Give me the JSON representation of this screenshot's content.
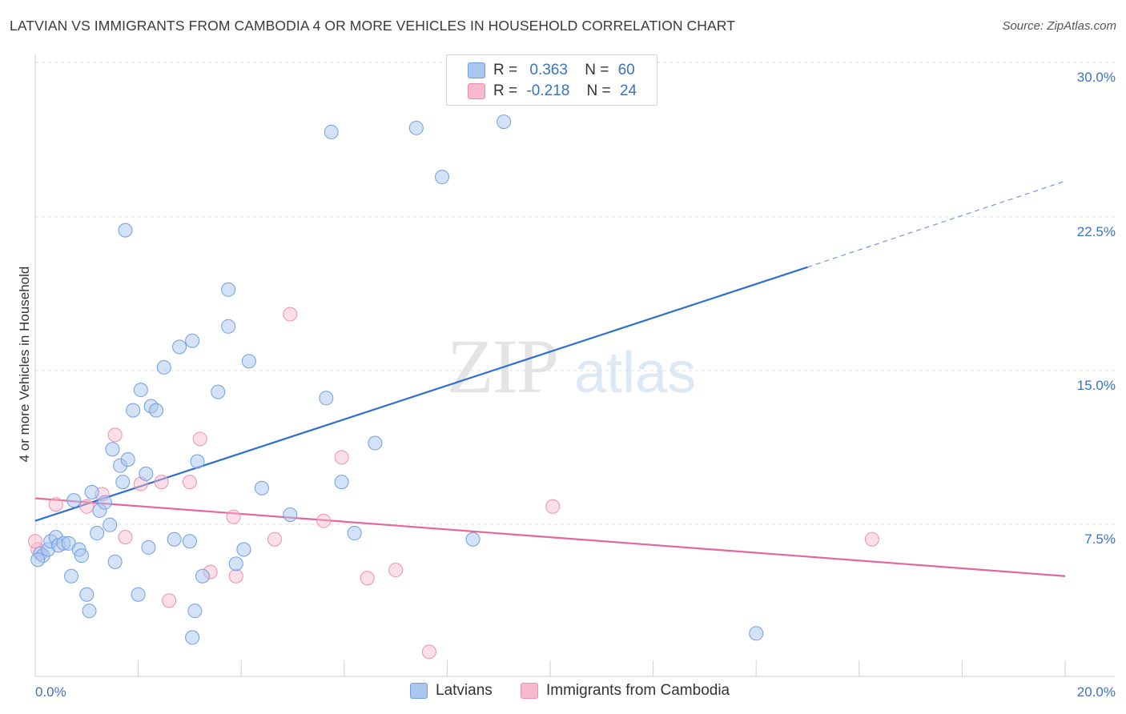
{
  "title": "LATVIAN VS IMMIGRANTS FROM CAMBODIA 4 OR MORE VEHICLES IN HOUSEHOLD CORRELATION CHART",
  "source": "Source: ZipAtlas.com",
  "legend": {
    "rows": [
      {
        "r_label": "R =",
        "r_value": "0.363",
        "n_label": "N =",
        "n_value": "60"
      },
      {
        "r_label": "R =",
        "r_value": "-0.218",
        "n_label": "N =",
        "n_value": "24"
      }
    ]
  },
  "bottom_legend": {
    "series1": "Latvians",
    "series2": "Immigrants from Cambodia"
  },
  "colors": {
    "series1_fill": "#a9c6ef",
    "series1_stroke": "#6f9fe0",
    "series1_line": "#2f6fd0",
    "series2_fill": "#f6b9cd",
    "series2_stroke": "#ee8fb0",
    "series2_line": "#e2679a",
    "tick_text": "#3a72c6"
  },
  "chart_data": {
    "type": "scatter",
    "xlabel": "",
    "ylabel": "4 or more Vehicles in Household",
    "xlim": [
      0,
      20
    ],
    "ylim": [
      0,
      30
    ],
    "x_tick_labels": [
      "0.0%",
      "20.0%"
    ],
    "y_ticks": [
      7.5,
      15.0,
      22.5,
      30.0
    ],
    "y_tick_labels": [
      "7.5%",
      "15.0%",
      "22.5%",
      "30.0%"
    ],
    "grid": "horizontal dashed",
    "legend_position": "top-center",
    "watermark": {
      "part1": "ZIP",
      "part2": "atlas"
    },
    "series": [
      {
        "name": "Latvians",
        "points": [
          [
            0.1,
            6.0
          ],
          [
            0.15,
            5.9
          ],
          [
            0.25,
            6.2
          ],
          [
            0.3,
            6.6
          ],
          [
            0.4,
            6.8
          ],
          [
            0.45,
            6.4
          ],
          [
            0.55,
            6.5
          ],
          [
            0.65,
            6.5
          ],
          [
            0.7,
            4.9
          ],
          [
            0.75,
            8.6
          ],
          [
            0.85,
            6.2
          ],
          [
            0.9,
            5.9
          ],
          [
            1.0,
            4.0
          ],
          [
            1.05,
            3.2
          ],
          [
            1.1,
            9.0
          ],
          [
            1.2,
            7.0
          ],
          [
            1.25,
            8.1
          ],
          [
            1.35,
            8.5
          ],
          [
            1.45,
            7.4
          ],
          [
            1.5,
            11.1
          ],
          [
            1.55,
            5.6
          ],
          [
            1.65,
            10.3
          ],
          [
            1.7,
            9.5
          ],
          [
            1.8,
            10.6
          ],
          [
            1.75,
            21.8
          ],
          [
            1.9,
            13.0
          ],
          [
            2.0,
            4.0
          ],
          [
            2.05,
            14.0
          ],
          [
            2.15,
            9.9
          ],
          [
            2.2,
            6.3
          ],
          [
            2.25,
            13.2
          ],
          [
            2.35,
            13.0
          ],
          [
            2.5,
            15.1
          ],
          [
            2.7,
            6.7
          ],
          [
            2.8,
            16.1
          ],
          [
            3.0,
            6.6
          ],
          [
            3.05,
            1.9
          ],
          [
            3.1,
            3.2
          ],
          [
            3.05,
            16.4
          ],
          [
            3.15,
            10.5
          ],
          [
            3.25,
            4.9
          ],
          [
            3.55,
            13.9
          ],
          [
            3.75,
            18.9
          ],
          [
            3.75,
            17.1
          ],
          [
            3.9,
            5.5
          ],
          [
            4.05,
            6.2
          ],
          [
            4.15,
            15.4
          ],
          [
            4.4,
            9.2
          ],
          [
            4.95,
            7.9
          ],
          [
            5.65,
            13.6
          ],
          [
            5.75,
            26.6
          ],
          [
            5.95,
            9.5
          ],
          [
            6.2,
            7.0
          ],
          [
            6.6,
            11.4
          ],
          [
            7.4,
            26.8
          ],
          [
            7.9,
            24.4
          ],
          [
            8.5,
            6.7
          ],
          [
            9.1,
            27.1
          ],
          [
            14.0,
            2.1
          ],
          [
            0.05,
            5.7
          ]
        ],
        "trend": {
          "x": [
            0,
            15.0
          ],
          "y": [
            7.6,
            20.0
          ]
        },
        "trend_extension": {
          "x": [
            15.0,
            20.0
          ],
          "y": [
            20.0,
            24.2
          ]
        }
      },
      {
        "name": "Immigrants from Cambodia",
        "points": [
          [
            0.05,
            6.2
          ],
          [
            0.4,
            8.4
          ],
          [
            1.0,
            8.3
          ],
          [
            1.3,
            8.9
          ],
          [
            1.55,
            11.8
          ],
          [
            1.75,
            6.8
          ],
          [
            2.05,
            9.4
          ],
          [
            2.45,
            9.5
          ],
          [
            2.6,
            3.7
          ],
          [
            3.0,
            9.5
          ],
          [
            3.2,
            11.6
          ],
          [
            3.4,
            5.1
          ],
          [
            3.85,
            7.8
          ],
          [
            3.9,
            4.9
          ],
          [
            4.65,
            6.7
          ],
          [
            4.95,
            17.7
          ],
          [
            5.6,
            7.6
          ],
          [
            5.95,
            10.7
          ],
          [
            6.45,
            4.8
          ],
          [
            7.0,
            5.2
          ],
          [
            7.65,
            1.2
          ],
          [
            10.05,
            8.3
          ],
          [
            16.25,
            6.7
          ],
          [
            0.0,
            6.6
          ]
        ],
        "trend": {
          "x": [
            0,
            20.0
          ],
          "y": [
            8.7,
            4.9
          ]
        }
      }
    ]
  }
}
